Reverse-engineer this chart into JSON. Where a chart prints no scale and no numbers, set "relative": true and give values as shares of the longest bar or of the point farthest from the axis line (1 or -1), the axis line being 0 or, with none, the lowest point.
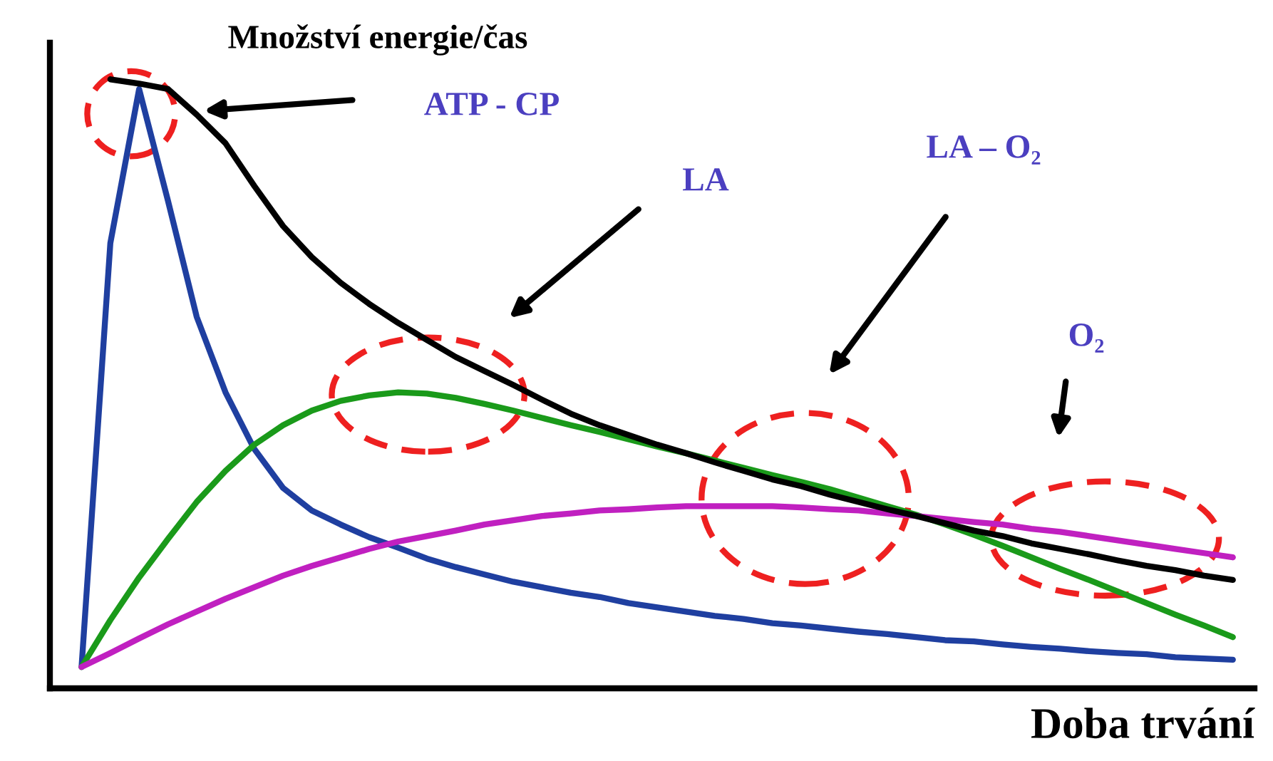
{
  "chart_data": {
    "type": "line",
    "relative": true,
    "ylabel": "Množství energie/čas",
    "xlabel": "Doba trvání",
    "categories": [
      null,
      null,
      null,
      null,
      null,
      null,
      null,
      null,
      null,
      null,
      null,
      null,
      null,
      null,
      null,
      null,
      null,
      null,
      null,
      null,
      null,
      null,
      null,
      null,
      null,
      null,
      null,
      null,
      null,
      null,
      null,
      null,
      null,
      null,
      null,
      null,
      null,
      null,
      null,
      null,
      null
    ],
    "series": [
      {
        "color": "#1f3fa0",
        "values": [
          0.035,
          0.731,
          0.984,
          0.801,
          0.61,
          0.486,
          0.393,
          0.329,
          0.292,
          0.269,
          0.248,
          0.231,
          0.213,
          0.199,
          0.187,
          0.175,
          0.166,
          0.157,
          0.15,
          0.14,
          0.133,
          0.126,
          0.119,
          0.114,
          0.107,
          0.103,
          0.098,
          0.093,
          0.089,
          0.084,
          0.079,
          0.077,
          0.072,
          0.068,
          0.065,
          0.061,
          0.058,
          0.056,
          0.051,
          0.049,
          0.047
        ]
      },
      {
        "color": "#1a9a1a",
        "values": [
          0.035,
          0.112,
          0.182,
          0.245,
          0.306,
          0.357,
          0.4,
          0.432,
          0.456,
          0.472,
          0.481,
          0.486,
          0.484,
          0.477,
          0.467,
          0.456,
          0.444,
          0.432,
          0.421,
          0.409,
          0.397,
          0.386,
          0.374,
          0.362,
          0.35,
          0.339,
          0.327,
          0.313,
          0.299,
          0.285,
          0.269,
          0.252,
          0.234,
          0.215,
          0.196,
          0.178,
          0.159,
          0.14,
          0.121,
          0.103,
          0.084
        ]
      },
      {
        "color": "#c020c0",
        "values": [
          0.035,
          0.058,
          0.082,
          0.105,
          0.126,
          0.147,
          0.166,
          0.185,
          0.201,
          0.215,
          0.229,
          0.241,
          0.25,
          0.259,
          0.269,
          0.276,
          0.283,
          0.287,
          0.292,
          0.294,
          0.297,
          0.299,
          0.299,
          0.299,
          0.299,
          0.297,
          0.294,
          0.292,
          0.287,
          0.283,
          0.278,
          0.273,
          0.269,
          0.262,
          0.257,
          0.25,
          0.243,
          0.236,
          0.229,
          0.222,
          0.215
        ]
      },
      {
        "color": "#000000",
        "values": [
          null,
          1.0,
          0.993,
          0.984,
          0.942,
          0.895,
          0.825,
          0.759,
          0.708,
          0.666,
          0.631,
          0.6,
          0.572,
          0.544,
          0.521,
          0.498,
          0.474,
          0.451,
          0.432,
          0.416,
          0.4,
          0.386,
          0.371,
          0.357,
          0.343,
          0.332,
          0.318,
          0.306,
          0.294,
          0.283,
          0.271,
          0.259,
          0.25,
          0.238,
          0.229,
          0.22,
          0.21,
          0.201,
          0.194,
          0.185,
          0.178
        ]
      }
    ],
    "annotations": [
      "ATP - CP",
      "LA",
      "LA – O₂",
      "O₂"
    ]
  }
}
